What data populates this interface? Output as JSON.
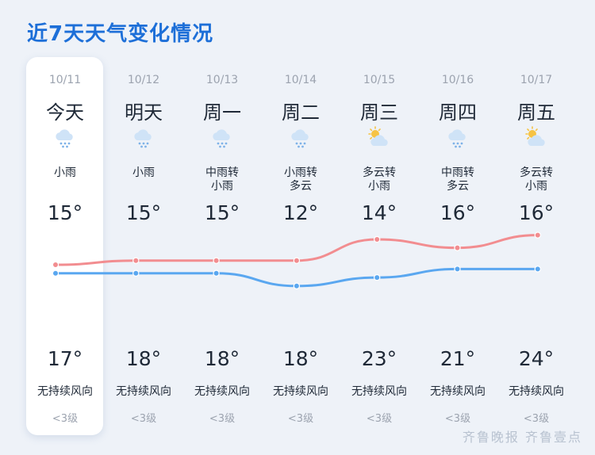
{
  "title": "近7天天气变化情况",
  "colors": {
    "high_line": "#f28d90",
    "low_line": "#5aa7f0",
    "title": "#1d6fd8"
  },
  "days": [
    {
      "date": "10/11",
      "weekday": "今天",
      "icon": "rain-icon",
      "desc1": "小雨",
      "desc2": "",
      "high_label": "15°",
      "low_label": "17°",
      "wind": "无持续风向",
      "level": "<3级"
    },
    {
      "date": "10/12",
      "weekday": "明天",
      "icon": "rain-icon",
      "desc1": "小雨",
      "desc2": "",
      "high_label": "15°",
      "low_label": "18°",
      "wind": "无持续风向",
      "level": "<3级"
    },
    {
      "date": "10/13",
      "weekday": "周一",
      "icon": "rain-icon",
      "desc1": "中雨转",
      "desc2": "小雨",
      "high_label": "15°",
      "low_label": "18°",
      "wind": "无持续风向",
      "level": "<3级"
    },
    {
      "date": "10/14",
      "weekday": "周二",
      "icon": "rain-icon",
      "desc1": "小雨转",
      "desc2": "多云",
      "high_label": "12°",
      "low_label": "18°",
      "wind": "无持续风向",
      "level": "<3级"
    },
    {
      "date": "10/15",
      "weekday": "周三",
      "icon": "partly-cloudy-icon",
      "desc1": "多云转",
      "desc2": "小雨",
      "high_label": "14°",
      "low_label": "23°",
      "wind": "无持续风向",
      "level": "<3级"
    },
    {
      "date": "10/16",
      "weekday": "周四",
      "icon": "rain-icon",
      "desc1": "中雨转",
      "desc2": "多云",
      "high_label": "16°",
      "low_label": "21°",
      "wind": "无持续风向",
      "level": "<3级"
    },
    {
      "date": "10/17",
      "weekday": "周五",
      "icon": "partly-cloudy-icon",
      "desc1": "多云转",
      "desc2": "小雨",
      "high_label": "16°",
      "low_label": "24°",
      "wind": "无持续风向",
      "level": "<3级"
    }
  ],
  "chart_data": {
    "type": "line",
    "categories": [
      "10/11",
      "10/12",
      "10/13",
      "10/14",
      "10/15",
      "10/16",
      "10/17"
    ],
    "series": [
      {
        "values": [
          15,
          15,
          15,
          12,
          14,
          16,
          16
        ],
        "color": "#5aa7f0"
      },
      {
        "values": [
          17,
          18,
          18,
          18,
          23,
          21,
          24
        ],
        "color": "#f28d90"
      }
    ]
  },
  "watermark": "齐鲁晚报 齐鲁壹点"
}
